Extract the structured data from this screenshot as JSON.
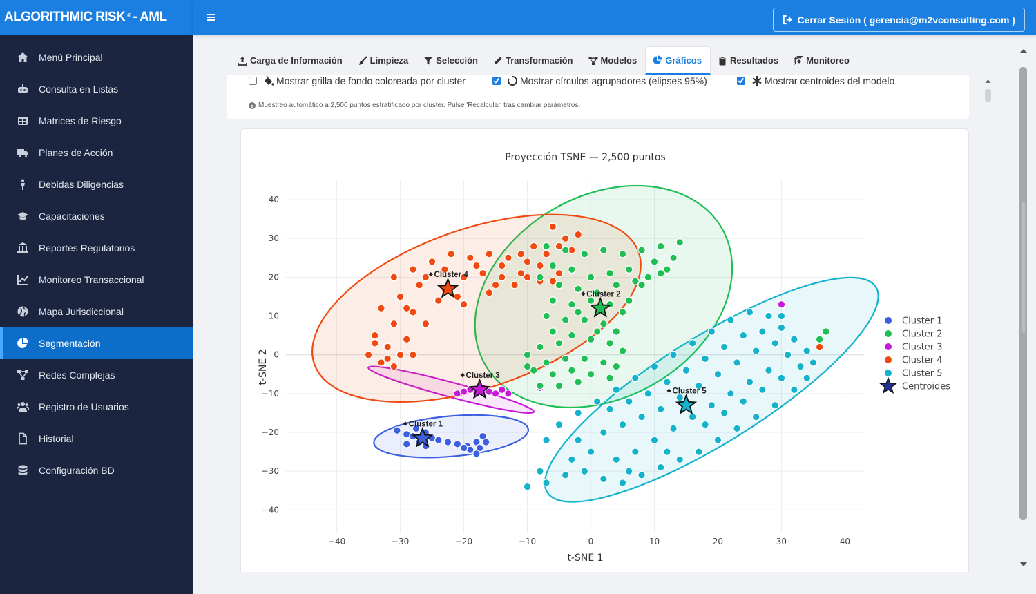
{
  "brand": {
    "name": "ALGORITHMIC RISK",
    "mark": "®",
    "suffix": "- AML"
  },
  "sidebar": {
    "items": [
      {
        "label": "Menú Principal",
        "icon": "home-icon"
      },
      {
        "label": "Consulta en Listas",
        "icon": "robot-icon"
      },
      {
        "label": "Matrices de Riesgo",
        "icon": "table-icon"
      },
      {
        "label": "Planes de Acción",
        "icon": "truck-icon"
      },
      {
        "label": "Debidas Diligencias",
        "icon": "person-icon"
      },
      {
        "label": "Capacitaciones",
        "icon": "graduation-cap-icon"
      },
      {
        "label": "Reportes Regulatorios",
        "icon": "bank-icon"
      },
      {
        "label": "Monitoreo Transaccional",
        "icon": "line-chart-icon"
      },
      {
        "label": "Mapa Jurisdiccional",
        "icon": "globe-icon"
      },
      {
        "label": "Segmentación",
        "icon": "pie-chart-icon",
        "active": true
      },
      {
        "label": "Redes Complejas",
        "icon": "network-icon"
      },
      {
        "label": "Registro de Usuarios",
        "icon": "users-icon"
      },
      {
        "label": "Historial",
        "icon": "file-icon"
      },
      {
        "label": "Configuración BD",
        "icon": "database-icon"
      }
    ]
  },
  "header": {
    "logout_label": "Cerrar Sesión ( gerencia@m2vconsulting.com )"
  },
  "tabs": [
    {
      "label": "Carga de Información",
      "icon": "upload-icon"
    },
    {
      "label": "Limpieza",
      "icon": "broom-icon"
    },
    {
      "label": "Selección",
      "icon": "filter-icon"
    },
    {
      "label": "Transformación",
      "icon": "pen-icon"
    },
    {
      "label": "Modelos",
      "icon": "model-network-icon"
    },
    {
      "label": "Gráficos",
      "icon": "chart-pie-icon",
      "active": true
    },
    {
      "label": "Resultados",
      "icon": "clipboard-icon"
    },
    {
      "label": "Monitoreo",
      "icon": "satellite-icon"
    }
  ],
  "options": {
    "grid": {
      "label": "Mostrar grilla de fondo coloreada por cluster",
      "checked": false
    },
    "ellipses": {
      "label": "Mostrar círculos agrupadores (elipses 95%)",
      "checked": true
    },
    "centroids": {
      "label": "Mostrar centroides del modelo",
      "checked": true
    },
    "note": "Muestreo automático a 2,500 puntos estratificado por cluster. Pulse 'Recalcular' tras cambiar parámetros."
  },
  "chart_data": {
    "type": "scatter",
    "title": "Proyección TSNE — 2,500 puntos",
    "xlabel": "t-SNE 1",
    "ylabel": "t-SNE 2",
    "xlim": [
      -48,
      43
    ],
    "ylim": [
      -46,
      45
    ],
    "xticks": [
      -40,
      -30,
      -20,
      -10,
      0,
      10,
      20,
      30,
      40
    ],
    "yticks": [
      -40,
      -30,
      -20,
      -10,
      0,
      10,
      20,
      30,
      40
    ],
    "grid": true,
    "legend": "right",
    "series": [
      {
        "name": "Cluster 1",
        "color": "#3b5fe0",
        "centroid": [
          -26.5,
          -21.5
        ],
        "ellipse": {
          "cx": -22,
          "cy": -21,
          "rx": 12.2,
          "ry": 5.2,
          "angle": -5
        },
        "points": [
          [
            -30.5,
            -19.5
          ],
          [
            -29,
            -20.5
          ],
          [
            -27.5,
            -19
          ],
          [
            -26,
            -20
          ],
          [
            -25,
            -21.5
          ],
          [
            -27,
            -22.5
          ],
          [
            -29,
            -23
          ],
          [
            -24,
            -22
          ],
          [
            -22.5,
            -22.5
          ],
          [
            -21,
            -23
          ],
          [
            -19.5,
            -23.5
          ],
          [
            -18,
            -22.5
          ],
          [
            -17.5,
            -24
          ],
          [
            -19,
            -24.5
          ],
          [
            -17,
            -21
          ],
          [
            -18,
            -25.5
          ],
          [
            -20,
            -24
          ],
          [
            -26,
            -23.5
          ],
          [
            -28,
            -21
          ],
          [
            -16.5,
            -22.5
          ]
        ]
      },
      {
        "name": "Cluster 2",
        "color": "#1fbf55",
        "centroid": [
          1.5,
          12
        ],
        "ellipse": {
          "cx": 2,
          "cy": 15,
          "rx": 21.5,
          "ry": 26,
          "angle": -30
        },
        "points": [
          [
            -7,
            28
          ],
          [
            -4,
            27
          ],
          [
            -1,
            26
          ],
          [
            2,
            27
          ],
          [
            5,
            26
          ],
          [
            8,
            27
          ],
          [
            11,
            28
          ],
          [
            14,
            29
          ],
          [
            10,
            24
          ],
          [
            6,
            22
          ],
          [
            3,
            21
          ],
          [
            0,
            20
          ],
          [
            -3,
            22
          ],
          [
            -6,
            23
          ],
          [
            -8,
            20
          ],
          [
            -5,
            18
          ],
          [
            -2,
            17
          ],
          [
            1,
            16
          ],
          [
            4,
            18
          ],
          [
            7,
            19
          ],
          [
            9,
            20
          ],
          [
            12,
            22
          ],
          [
            13,
            25
          ],
          [
            -6,
            14
          ],
          [
            -3,
            13
          ],
          [
            0,
            14
          ],
          [
            3,
            13
          ],
          [
            5,
            11
          ],
          [
            -7,
            10
          ],
          [
            -4,
            9
          ],
          [
            -1,
            9
          ],
          [
            2,
            8
          ],
          [
            4,
            6
          ],
          [
            -6,
            6
          ],
          [
            -3,
            5
          ],
          [
            0,
            4
          ],
          [
            3,
            3
          ],
          [
            5,
            1
          ],
          [
            -8,
            2
          ],
          [
            -10,
            0
          ],
          [
            -7,
            -2
          ],
          [
            -4,
            -1
          ],
          [
            -1,
            -1
          ],
          [
            2,
            -2
          ],
          [
            4,
            -3
          ],
          [
            -9,
            -4
          ],
          [
            -6,
            -5
          ],
          [
            -3,
            -4
          ],
          [
            0,
            -5
          ],
          [
            -8,
            -8
          ],
          [
            -5,
            -8
          ],
          [
            -2,
            -7
          ],
          [
            8,
            18
          ],
          [
            11,
            21
          ],
          [
            6,
            14
          ],
          [
            -2,
            11
          ],
          [
            1,
            6
          ],
          [
            -5,
            3
          ],
          [
            -10,
            -3
          ],
          [
            3,
            -6
          ],
          [
            36,
            4
          ],
          [
            37,
            6
          ]
        ]
      },
      {
        "name": "Cluster 3",
        "color": "#c71ad9",
        "centroid": [
          -17.5,
          -9
        ],
        "ellipse": {
          "cx": -22,
          "cy": -9,
          "rx": 13.5,
          "ry": 1.9,
          "angle": 15
        },
        "points": [
          [
            -21,
            -10
          ],
          [
            -19,
            -9
          ],
          [
            -18,
            -10
          ],
          [
            -16,
            -9.5
          ],
          [
            -14,
            -9
          ],
          [
            -20,
            -9.5
          ],
          [
            -17,
            -8.5
          ],
          [
            -15,
            -10
          ],
          [
            -8,
            -8.5
          ],
          [
            30,
            13
          ],
          [
            -13,
            -10
          ]
        ]
      },
      {
        "name": "Cluster 4",
        "color": "#f04a10",
        "centroid": [
          -22.5,
          17
        ],
        "ellipse": {
          "cx": -18,
          "cy": 12,
          "rx": 27,
          "ry": 20.5,
          "angle": -19
        },
        "points": [
          [
            -31,
            20
          ],
          [
            -28,
            22
          ],
          [
            -25,
            24
          ],
          [
            -22,
            26
          ],
          [
            -19,
            25
          ],
          [
            -16,
            26
          ],
          [
            -13,
            25
          ],
          [
            -10,
            24
          ],
          [
            -7,
            26
          ],
          [
            -4,
            30
          ],
          [
            -6,
            33
          ],
          [
            -2,
            31
          ],
          [
            -5,
            28
          ],
          [
            -8,
            23
          ],
          [
            -11,
            21
          ],
          [
            -14,
            20
          ],
          [
            -17,
            21
          ],
          [
            -20,
            20
          ],
          [
            -23,
            22
          ],
          [
            -27,
            18
          ],
          [
            -30,
            15
          ],
          [
            -33,
            12
          ],
          [
            -31,
            8
          ],
          [
            -34,
            5
          ],
          [
            -32,
            2
          ],
          [
            -30,
            0
          ],
          [
            -33,
            -2
          ],
          [
            -35,
            0
          ],
          [
            -31,
            -3
          ],
          [
            -28,
            0
          ],
          [
            -29,
            4
          ],
          [
            -26,
            8
          ],
          [
            -28,
            11
          ],
          [
            -24,
            14
          ],
          [
            -20,
            13
          ],
          [
            -16,
            16
          ],
          [
            -12,
            18
          ],
          [
            -8,
            19
          ],
          [
            -5,
            21
          ],
          [
            -26,
            20
          ],
          [
            -18,
            23
          ],
          [
            -14,
            23
          ],
          [
            -10,
            20
          ],
          [
            -6,
            19
          ],
          [
            -3,
            27
          ],
          [
            -9,
            28
          ],
          [
            -23,
            17
          ],
          [
            -29,
            12
          ],
          [
            -32,
            -1
          ],
          [
            36,
            2
          ],
          [
            -34,
            3
          ],
          [
            -21,
            15
          ],
          [
            -15,
            18
          ],
          [
            -11,
            26
          ]
        ]
      },
      {
        "name": "Cluster 5",
        "color": "#15b2cc",
        "centroid": [
          15,
          -13
        ],
        "ellipse": {
          "cx": 19,
          "cy": -9,
          "rx": 30.5,
          "ry": 13.7,
          "angle": -32
        },
        "points": [
          [
            -10,
            -34
          ],
          [
            -7,
            -33
          ],
          [
            -4,
            -31
          ],
          [
            -1,
            -30
          ],
          [
            2,
            -32
          ],
          [
            5,
            -33
          ],
          [
            8,
            -31
          ],
          [
            11,
            -29
          ],
          [
            14,
            -27
          ],
          [
            17,
            -25
          ],
          [
            20,
            -22
          ],
          [
            23,
            -19
          ],
          [
            26,
            -16
          ],
          [
            29,
            -13
          ],
          [
            32,
            -9
          ],
          [
            34,
            -6
          ],
          [
            35,
            -2
          ],
          [
            34,
            1
          ],
          [
            32,
            4
          ],
          [
            30,
            7
          ],
          [
            28,
            10
          ],
          [
            25,
            11
          ],
          [
            22,
            9
          ],
          [
            19,
            6
          ],
          [
            16,
            3
          ],
          [
            13,
            0
          ],
          [
            10,
            -3
          ],
          [
            7,
            -6
          ],
          [
            4,
            -9
          ],
          [
            1,
            -12
          ],
          [
            -2,
            -15
          ],
          [
            -5,
            -18
          ],
          [
            -7,
            -22
          ],
          [
            -2,
            -22
          ],
          [
            2,
            -20
          ],
          [
            5,
            -18
          ],
          [
            8,
            -16
          ],
          [
            11,
            -14
          ],
          [
            14,
            -11
          ],
          [
            17,
            -8
          ],
          [
            20,
            -5
          ],
          [
            23,
            -2
          ],
          [
            26,
            1
          ],
          [
            29,
            3
          ],
          [
            31,
            0
          ],
          [
            28,
            -4
          ],
          [
            25,
            -7
          ],
          [
            22,
            -10
          ],
          [
            19,
            -13
          ],
          [
            16,
            -16
          ],
          [
            13,
            -19
          ],
          [
            10,
            -22
          ],
          [
            7,
            -25
          ],
          [
            4,
            -27
          ],
          [
            0,
            -25
          ],
          [
            -3,
            -27
          ],
          [
            9,
            -10
          ],
          [
            12,
            -7
          ],
          [
            15,
            -4
          ],
          [
            18,
            -1
          ],
          [
            21,
            2
          ],
          [
            24,
            5
          ],
          [
            27,
            6
          ],
          [
            30,
            10
          ],
          [
            -8,
            -30
          ],
          [
            6,
            -30
          ],
          [
            18,
            -18
          ],
          [
            21,
            -15
          ],
          [
            24,
            -12
          ],
          [
            27,
            -9
          ],
          [
            30,
            -6
          ],
          [
            33,
            -3
          ],
          [
            12,
            -25
          ],
          [
            3,
            -14
          ],
          [
            6,
            -12
          ]
        ]
      }
    ],
    "centroid_labels": [
      "Cluster 1",
      "Cluster 2",
      "Cluster 3",
      "Cluster 4",
      "Cluster 5"
    ],
    "legend_centroids": "Centroides"
  }
}
